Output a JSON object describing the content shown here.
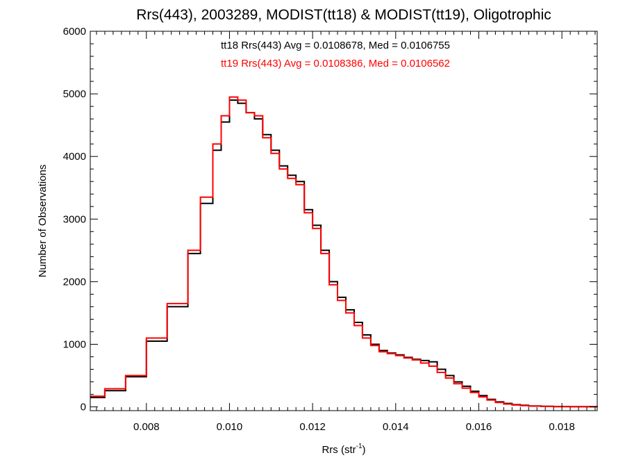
{
  "chart_data": {
    "type": "line",
    "title": "Rrs(443), 2003289, MODIST(tt18) & MODIST(tt19), Oligotrophic",
    "xlabel": "Rrs (str",
    "xlabel_sup": "-1",
    "xlabel_end": ")",
    "ylabel": "Number of Observations",
    "xlim": [
      0.00665,
      0.01885
    ],
    "ylim": [
      -60,
      6000
    ],
    "x_ticks": [
      0.008,
      0.01,
      0.012,
      0.014,
      0.016,
      0.018
    ],
    "x_tick_labels": [
      "0.008",
      "0.010",
      "0.012",
      "0.014",
      "0.016",
      "0.018"
    ],
    "y_ticks": [
      0,
      1000,
      2000,
      3000,
      4000,
      5000,
      6000
    ],
    "y_tick_labels": [
      "0",
      "1000",
      "2000",
      "3000",
      "4000",
      "5000",
      "6000"
    ],
    "grid": false,
    "annotations": [
      {
        "text": "tt18 Rrs(443) Avg = 0.0108678, Med = 0.0106755",
        "color": "#000000"
      },
      {
        "text": "tt19 Rrs(443) Avg = 0.0108386, Med = 0.0106562",
        "color": "#ff0000"
      }
    ],
    "series": [
      {
        "color": "#000000",
        "step": true,
        "x": [
          0.00665,
          0.007,
          0.0075,
          0.008,
          0.0085,
          0.009,
          0.0093,
          0.0096,
          0.0098,
          0.01,
          0.0102,
          0.0104,
          0.0106,
          0.0108,
          0.011,
          0.0112,
          0.0114,
          0.0116,
          0.0118,
          0.012,
          0.0122,
          0.0124,
          0.0126,
          0.0128,
          0.013,
          0.0132,
          0.0134,
          0.0136,
          0.0138,
          0.014,
          0.0142,
          0.0144,
          0.0146,
          0.0148,
          0.015,
          0.0152,
          0.0154,
          0.0156,
          0.0158,
          0.016,
          0.0162,
          0.0164,
          0.0166,
          0.0168,
          0.017,
          0.0172,
          0.0175,
          0.0178,
          0.0182,
          0.01885
        ],
        "y": [
          150,
          260,
          480,
          1050,
          1600,
          2450,
          3250,
          4100,
          4550,
          4900,
          4850,
          4700,
          4600,
          4350,
          4100,
          3850,
          3700,
          3600,
          3150,
          2900,
          2500,
          2000,
          1750,
          1550,
          1350,
          1150,
          1000,
          900,
          860,
          830,
          790,
          760,
          740,
          720,
          600,
          500,
          400,
          330,
          250,
          180,
          120,
          80,
          55,
          35,
          25,
          15,
          10,
          5,
          3,
          0
        ]
      },
      {
        "color": "#ff0000",
        "step": true,
        "x": [
          0.00665,
          0.007,
          0.0075,
          0.008,
          0.0085,
          0.009,
          0.0093,
          0.0096,
          0.0098,
          0.01,
          0.0102,
          0.0104,
          0.0106,
          0.0108,
          0.011,
          0.0112,
          0.0114,
          0.0116,
          0.0118,
          0.012,
          0.0122,
          0.0124,
          0.0126,
          0.0128,
          0.013,
          0.0132,
          0.0134,
          0.0136,
          0.0138,
          0.014,
          0.0142,
          0.0144,
          0.0146,
          0.0148,
          0.015,
          0.0152,
          0.0154,
          0.0156,
          0.0158,
          0.016,
          0.0162,
          0.0164,
          0.0166,
          0.0168,
          0.017,
          0.0172,
          0.0175,
          0.0178,
          0.0182,
          0.01885
        ],
        "y": [
          170,
          290,
          500,
          1100,
          1650,
          2500,
          3350,
          4200,
          4650,
          4950,
          4900,
          4700,
          4650,
          4300,
          4050,
          3800,
          3650,
          3550,
          3100,
          2850,
          2450,
          1950,
          1700,
          1500,
          1300,
          1100,
          980,
          880,
          850,
          820,
          780,
          750,
          700,
          650,
          550,
          460,
          370,
          300,
          230,
          160,
          110,
          70,
          45,
          30,
          20,
          12,
          8,
          4,
          2,
          0
        ]
      }
    ]
  }
}
